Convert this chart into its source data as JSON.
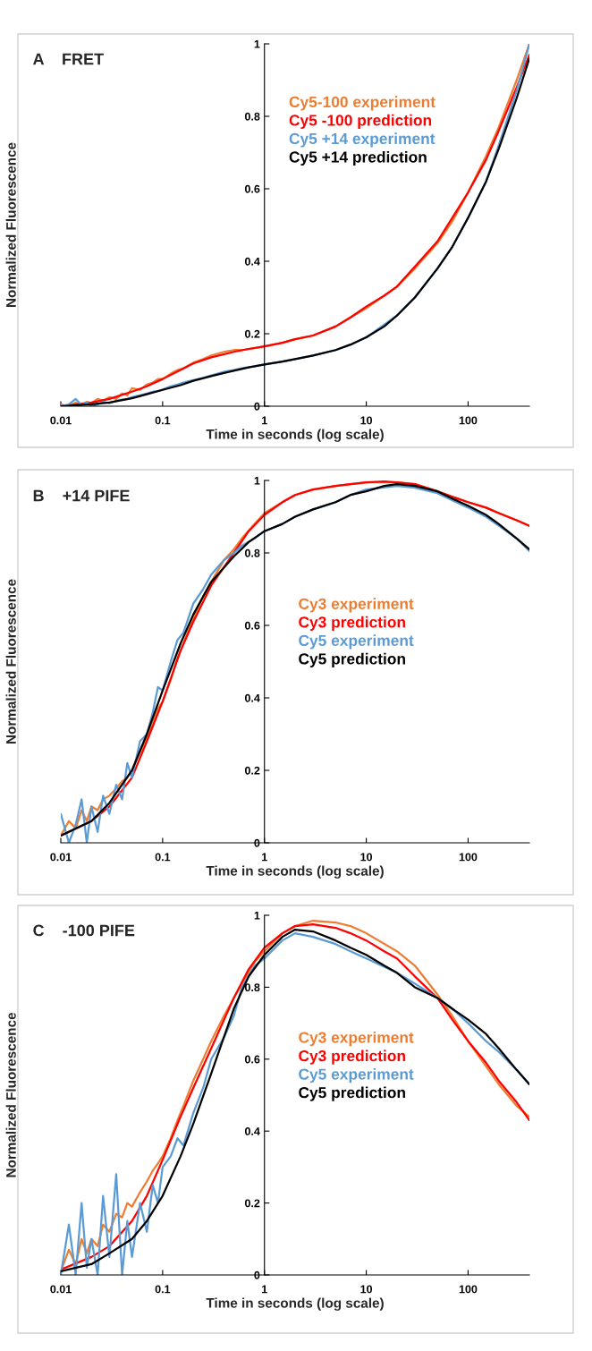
{
  "chart_data": [
    {
      "type": "line",
      "title": "A    FRET",
      "xlabel": "Time in seconds (log scale)",
      "ylabel": "Normalized Fluorescence",
      "log": "x",
      "xlim": [
        0.01,
        400
      ],
      "ylim": [
        0,
        1
      ],
      "xticks": [
        0.01,
        0.1,
        1,
        10,
        100
      ],
      "yticks": [
        0,
        0.2,
        0.4,
        0.6,
        0.8,
        1
      ],
      "grid": false,
      "legend": "top right",
      "series": [
        {
          "name": "Cy5-100 experiment",
          "color": "#ed7d31",
          "x": [
            0.01,
            0.012,
            0.014,
            0.016,
            0.018,
            0.02,
            0.023,
            0.026,
            0.03,
            0.035,
            0.04,
            0.045,
            0.05,
            0.06,
            0.07,
            0.08,
            0.09,
            0.1,
            0.12,
            0.14,
            0.16,
            0.2,
            0.25,
            0.3,
            0.4,
            0.5,
            0.6,
            0.8,
            1,
            1.5,
            2,
            3,
            5,
            7,
            10,
            20,
            30,
            50,
            70,
            100,
            150,
            200,
            300,
            400
          ],
          "values": [
            0.005,
            0.0,
            0.01,
            0.005,
            0.012,
            0.008,
            0.02,
            0.015,
            0.025,
            0.02,
            0.035,
            0.03,
            0.05,
            0.045,
            0.06,
            0.065,
            0.075,
            0.075,
            0.09,
            0.1,
            0.105,
            0.12,
            0.13,
            0.14,
            0.15,
            0.155,
            0.155,
            0.16,
            0.165,
            0.175,
            0.185,
            0.195,
            0.22,
            0.245,
            0.27,
            0.33,
            0.38,
            0.45,
            0.51,
            0.59,
            0.69,
            0.77,
            0.9,
            1.0
          ]
        },
        {
          "name": "Cy5 -100 prediction",
          "color": "#ff0000",
          "x": [
            0.01,
            0.02,
            0.03,
            0.05,
            0.07,
            0.1,
            0.15,
            0.2,
            0.3,
            0.5,
            0.7,
            1,
            1.5,
            2,
            3,
            5,
            7,
            10,
            15,
            20,
            30,
            50,
            70,
            100,
            150,
            200,
            300,
            400
          ],
          "values": [
            0,
            0.01,
            0.02,
            0.04,
            0.055,
            0.075,
            0.1,
            0.118,
            0.135,
            0.15,
            0.158,
            0.165,
            0.175,
            0.185,
            0.195,
            0.22,
            0.245,
            0.275,
            0.305,
            0.33,
            0.385,
            0.455,
            0.52,
            0.59,
            0.68,
            0.76,
            0.88,
            0.97
          ]
        },
        {
          "name": "Cy5 +14 experiment",
          "color": "#5b9bd5",
          "x": [
            0.01,
            0.012,
            0.014,
            0.016,
            0.018,
            0.02,
            0.023,
            0.026,
            0.03,
            0.035,
            0.04,
            0.045,
            0.05,
            0.06,
            0.07,
            0.08,
            0.09,
            0.1,
            0.12,
            0.14,
            0.16,
            0.2,
            0.25,
            0.3,
            0.4,
            0.5,
            0.6,
            0.8,
            1,
            1.5,
            2,
            3,
            5,
            7,
            10,
            20,
            30,
            50,
            70,
            100,
            150,
            200,
            300,
            400
          ],
          "values": [
            0,
            0.005,
            0.02,
            0.003,
            0.01,
            0.0,
            0.005,
            0.012,
            0.008,
            0.015,
            0.018,
            0.02,
            0.025,
            0.03,
            0.035,
            0.04,
            0.042,
            0.046,
            0.055,
            0.06,
            0.065,
            0.072,
            0.078,
            0.085,
            0.095,
            0.1,
            0.105,
            0.11,
            0.115,
            0.123,
            0.13,
            0.14,
            0.155,
            0.17,
            0.19,
            0.25,
            0.3,
            0.38,
            0.44,
            0.52,
            0.62,
            0.72,
            0.87,
            1.0
          ]
        },
        {
          "name": "Cy5 +14 prediction",
          "color": "#000000",
          "x": [
            0.01,
            0.02,
            0.03,
            0.05,
            0.07,
            0.1,
            0.15,
            0.2,
            0.3,
            0.5,
            0.7,
            1,
            1.5,
            2,
            3,
            5,
            7,
            10,
            15,
            20,
            30,
            50,
            70,
            100,
            150,
            200,
            300,
            400
          ],
          "values": [
            0,
            0.005,
            0.01,
            0.022,
            0.033,
            0.045,
            0.058,
            0.07,
            0.083,
            0.098,
            0.107,
            0.115,
            0.123,
            0.13,
            0.14,
            0.155,
            0.17,
            0.19,
            0.22,
            0.25,
            0.3,
            0.38,
            0.44,
            0.52,
            0.62,
            0.71,
            0.85,
            0.96
          ]
        }
      ]
    },
    {
      "type": "line",
      "title": "B    +14 PIFE",
      "xlabel": "Time in seconds (log scale)",
      "ylabel": "Normalized Fluorescence",
      "log": "x",
      "xlim": [
        0.01,
        400
      ],
      "ylim": [
        0,
        1
      ],
      "xticks": [
        0.01,
        0.1,
        1,
        10,
        100
      ],
      "yticks": [
        0,
        0.2,
        0.4,
        0.6,
        0.8,
        1
      ],
      "grid": false,
      "legend": "right",
      "series": [
        {
          "name": "Cy3 experiment",
          "color": "#ed7d31",
          "x": [
            0.01,
            0.012,
            0.014,
            0.016,
            0.018,
            0.02,
            0.023,
            0.026,
            0.03,
            0.035,
            0.04,
            0.045,
            0.05,
            0.06,
            0.07,
            0.08,
            0.09,
            0.1,
            0.12,
            0.14,
            0.16,
            0.2,
            0.25,
            0.3,
            0.4,
            0.5,
            0.6,
            0.8,
            1,
            1.5,
            2,
            3,
            5,
            7,
            10,
            20,
            30,
            50,
            70,
            100,
            150,
            200,
            300,
            400
          ],
          "values": [
            0.02,
            0.06,
            0.04,
            0.09,
            0.06,
            0.1,
            0.09,
            0.12,
            0.13,
            0.15,
            0.17,
            0.18,
            0.2,
            0.25,
            0.29,
            0.33,
            0.37,
            0.39,
            0.45,
            0.51,
            0.55,
            0.62,
            0.68,
            0.72,
            0.78,
            0.81,
            0.84,
            0.88,
            0.91,
            0.94,
            0.96,
            0.975,
            0.985,
            0.99,
            0.995,
            0.995,
            0.99,
            0.97,
            0.955,
            0.94,
            0.925,
            0.91,
            0.89,
            0.875
          ]
        },
        {
          "name": "Cy3 prediction",
          "color": "#ff0000",
          "x": [
            0.01,
            0.02,
            0.03,
            0.05,
            0.07,
            0.1,
            0.15,
            0.2,
            0.3,
            0.5,
            0.7,
            1,
            1.5,
            2,
            3,
            5,
            7,
            10,
            15,
            20,
            30,
            50,
            70,
            100,
            150,
            200,
            300,
            400
          ],
          "values": [
            0.02,
            0.06,
            0.1,
            0.18,
            0.28,
            0.39,
            0.53,
            0.61,
            0.71,
            0.8,
            0.86,
            0.905,
            0.94,
            0.96,
            0.975,
            0.985,
            0.99,
            0.995,
            0.997,
            0.995,
            0.99,
            0.97,
            0.955,
            0.94,
            0.925,
            0.91,
            0.89,
            0.875
          ]
        },
        {
          "name": "Cy5 experiment",
          "color": "#5b9bd5",
          "x": [
            0.01,
            0.012,
            0.014,
            0.016,
            0.018,
            0.02,
            0.023,
            0.026,
            0.03,
            0.035,
            0.04,
            0.045,
            0.05,
            0.06,
            0.07,
            0.08,
            0.09,
            0.1,
            0.12,
            0.14,
            0.16,
            0.2,
            0.25,
            0.3,
            0.4,
            0.5,
            0.6,
            0.8,
            1,
            1.5,
            2,
            3,
            5,
            7,
            10,
            20,
            30,
            50,
            70,
            100,
            150,
            200,
            300,
            400
          ],
          "values": [
            0.08,
            0.0,
            0.05,
            0.12,
            0.0,
            0.1,
            0.03,
            0.13,
            0.08,
            0.16,
            0.12,
            0.22,
            0.18,
            0.28,
            0.3,
            0.36,
            0.43,
            0.42,
            0.5,
            0.56,
            0.58,
            0.66,
            0.7,
            0.74,
            0.78,
            0.8,
            0.82,
            0.84,
            0.86,
            0.88,
            0.9,
            0.92,
            0.94,
            0.96,
            0.975,
            0.985,
            0.98,
            0.965,
            0.945,
            0.925,
            0.9,
            0.875,
            0.84,
            0.805
          ]
        },
        {
          "name": "Cy5 prediction",
          "color": "#000000",
          "x": [
            0.01,
            0.02,
            0.03,
            0.05,
            0.07,
            0.1,
            0.15,
            0.2,
            0.3,
            0.5,
            0.7,
            1,
            1.5,
            2,
            3,
            5,
            7,
            10,
            15,
            20,
            30,
            50,
            70,
            100,
            150,
            200,
            300,
            400
          ],
          "values": [
            0.02,
            0.06,
            0.11,
            0.2,
            0.3,
            0.42,
            0.55,
            0.63,
            0.72,
            0.79,
            0.83,
            0.86,
            0.88,
            0.9,
            0.92,
            0.94,
            0.96,
            0.97,
            0.985,
            0.99,
            0.985,
            0.97,
            0.95,
            0.93,
            0.905,
            0.88,
            0.84,
            0.81
          ]
        }
      ]
    },
    {
      "type": "line",
      "title": "C    -100 PIFE",
      "xlabel": "Time in seconds (log scale)",
      "ylabel": "Normalized Fluorescence",
      "log": "x",
      "xlim": [
        0.01,
        400
      ],
      "ylim": [
        0,
        1
      ],
      "xticks": [
        0.01,
        0.1,
        1,
        10,
        100
      ],
      "yticks": [
        0,
        0.2,
        0.4,
        0.6,
        0.8,
        1
      ],
      "grid": false,
      "legend": "right",
      "series": [
        {
          "name": "Cy3 experiment",
          "color": "#ed7d31",
          "x": [
            0.01,
            0.012,
            0.014,
            0.016,
            0.018,
            0.02,
            0.023,
            0.026,
            0.03,
            0.035,
            0.04,
            0.045,
            0.05,
            0.06,
            0.07,
            0.08,
            0.09,
            0.1,
            0.12,
            0.14,
            0.16,
            0.2,
            0.25,
            0.3,
            0.4,
            0.5,
            0.6,
            0.8,
            1,
            1.5,
            2,
            3,
            5,
            7,
            10,
            20,
            30,
            50,
            70,
            100,
            150,
            200,
            300,
            400
          ],
          "values": [
            0.01,
            0.07,
            0.03,
            0.1,
            0.06,
            0.1,
            0.08,
            0.14,
            0.12,
            0.17,
            0.16,
            0.2,
            0.19,
            0.23,
            0.26,
            0.29,
            0.31,
            0.33,
            0.38,
            0.43,
            0.47,
            0.54,
            0.6,
            0.65,
            0.72,
            0.77,
            0.81,
            0.87,
            0.9,
            0.95,
            0.97,
            0.985,
            0.98,
            0.97,
            0.95,
            0.9,
            0.86,
            0.78,
            0.72,
            0.65,
            0.58,
            0.53,
            0.47,
            0.44
          ]
        },
        {
          "name": "Cy3 prediction",
          "color": "#ff0000",
          "x": [
            0.01,
            0.02,
            0.03,
            0.05,
            0.07,
            0.1,
            0.15,
            0.2,
            0.3,
            0.5,
            0.7,
            1,
            1.5,
            2,
            3,
            5,
            7,
            10,
            15,
            20,
            30,
            50,
            70,
            100,
            150,
            200,
            300,
            400
          ],
          "values": [
            0.015,
            0.05,
            0.08,
            0.15,
            0.22,
            0.32,
            0.44,
            0.52,
            0.63,
            0.77,
            0.85,
            0.91,
            0.95,
            0.97,
            0.975,
            0.965,
            0.95,
            0.93,
            0.9,
            0.88,
            0.83,
            0.77,
            0.71,
            0.65,
            0.59,
            0.54,
            0.48,
            0.43
          ]
        },
        {
          "name": "Cy5 experiment",
          "color": "#5b9bd5",
          "x": [
            0.01,
            0.012,
            0.014,
            0.016,
            0.018,
            0.02,
            0.023,
            0.026,
            0.03,
            0.035,
            0.04,
            0.045,
            0.05,
            0.06,
            0.07,
            0.08,
            0.09,
            0.1,
            0.12,
            0.14,
            0.16,
            0.2,
            0.25,
            0.3,
            0.4,
            0.5,
            0.6,
            0.8,
            1,
            1.5,
            2,
            3,
            5,
            7,
            10,
            20,
            30,
            50,
            70,
            100,
            150,
            200,
            300,
            400
          ],
          "values": [
            0.0,
            0.14,
            0.0,
            0.2,
            0.02,
            0.1,
            0.0,
            0.22,
            0.05,
            0.28,
            0.0,
            0.15,
            0.05,
            0.2,
            0.12,
            0.25,
            0.2,
            0.3,
            0.33,
            0.38,
            0.36,
            0.45,
            0.52,
            0.6,
            0.66,
            0.72,
            0.8,
            0.86,
            0.88,
            0.93,
            0.95,
            0.94,
            0.92,
            0.9,
            0.88,
            0.84,
            0.81,
            0.77,
            0.74,
            0.7,
            0.65,
            0.62,
            0.57,
            0.53
          ]
        },
        {
          "name": "Cy5 prediction",
          "color": "#000000",
          "x": [
            0.01,
            0.02,
            0.03,
            0.05,
            0.07,
            0.1,
            0.15,
            0.2,
            0.3,
            0.5,
            0.7,
            1,
            1.5,
            2,
            3,
            5,
            7,
            10,
            15,
            20,
            30,
            50,
            70,
            100,
            150,
            200,
            300,
            400
          ],
          "values": [
            0.01,
            0.03,
            0.06,
            0.1,
            0.15,
            0.22,
            0.33,
            0.42,
            0.56,
            0.74,
            0.83,
            0.89,
            0.94,
            0.96,
            0.955,
            0.93,
            0.91,
            0.89,
            0.86,
            0.84,
            0.8,
            0.77,
            0.74,
            0.71,
            0.67,
            0.63,
            0.57,
            0.53
          ]
        }
      ]
    }
  ]
}
